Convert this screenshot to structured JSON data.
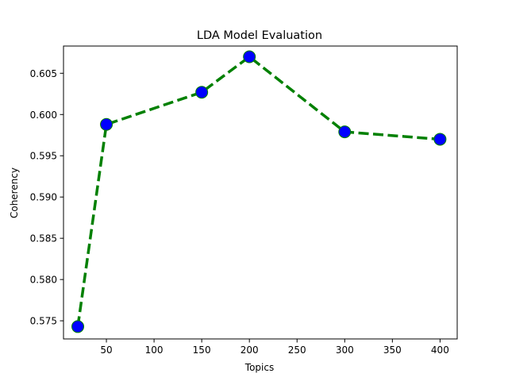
{
  "chart_data": {
    "type": "line",
    "title": "LDA Model Evaluation",
    "xlabel": "Topics",
    "ylabel": "Coherency",
    "x": [
      20,
      50,
      150,
      200,
      300,
      400
    ],
    "series": [
      {
        "values": [
          0.5743,
          0.5988,
          0.6027,
          0.607,
          0.5979,
          0.597
        ]
      }
    ],
    "xlim": [
      5,
      418
    ],
    "ylim": [
      0.5728,
      0.6083
    ],
    "xticks": [
      50,
      100,
      150,
      200,
      250,
      300,
      350,
      400
    ],
    "yticks": [
      0.575,
      0.58,
      0.585,
      0.59,
      0.595,
      0.6,
      0.605
    ],
    "ytick_labels": [
      "0.575",
      "0.580",
      "0.585",
      "0.590",
      "0.595",
      "0.600",
      "0.605"
    ],
    "grid": false,
    "legend": "none",
    "colors": {
      "line": "#008000",
      "marker_fill": "#0000ff",
      "marker_edge": "#008000"
    },
    "line_style": "dashed",
    "marker": "circle"
  }
}
